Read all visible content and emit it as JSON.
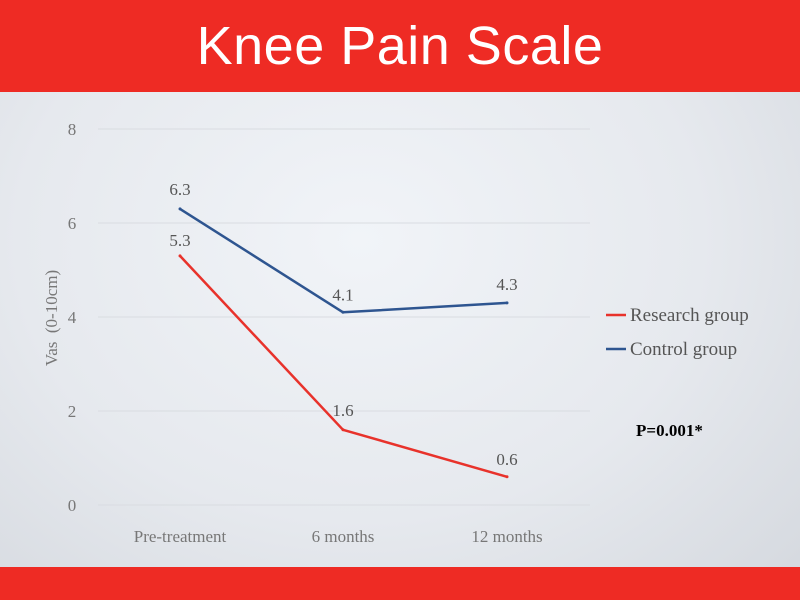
{
  "header": {
    "title": "Knee Pain Scale"
  },
  "annotation": {
    "text": "P=0.001*"
  },
  "chart_data": {
    "type": "line",
    "title": "Knee Pain Scale",
    "xlabel": "",
    "ylabel": "Vas  (0-10cm)",
    "categories": [
      "Pre-treatment",
      "6 months",
      "12 months"
    ],
    "ylim": [
      0,
      8
    ],
    "yticks": [
      0,
      2,
      4,
      6,
      8
    ],
    "grid": true,
    "legend_position": "right",
    "series": [
      {
        "name": "Research group",
        "values": [
          5.3,
          1.6,
          0.6
        ],
        "color": "#e8322b"
      },
      {
        "name": "Control group",
        "values": [
          6.3,
          4.1,
          4.3
        ],
        "color": "#2e5590"
      }
    ]
  },
  "colors": {
    "accent": "#ee2b24",
    "axis_text": "#777777",
    "label_text": "#555555"
  }
}
